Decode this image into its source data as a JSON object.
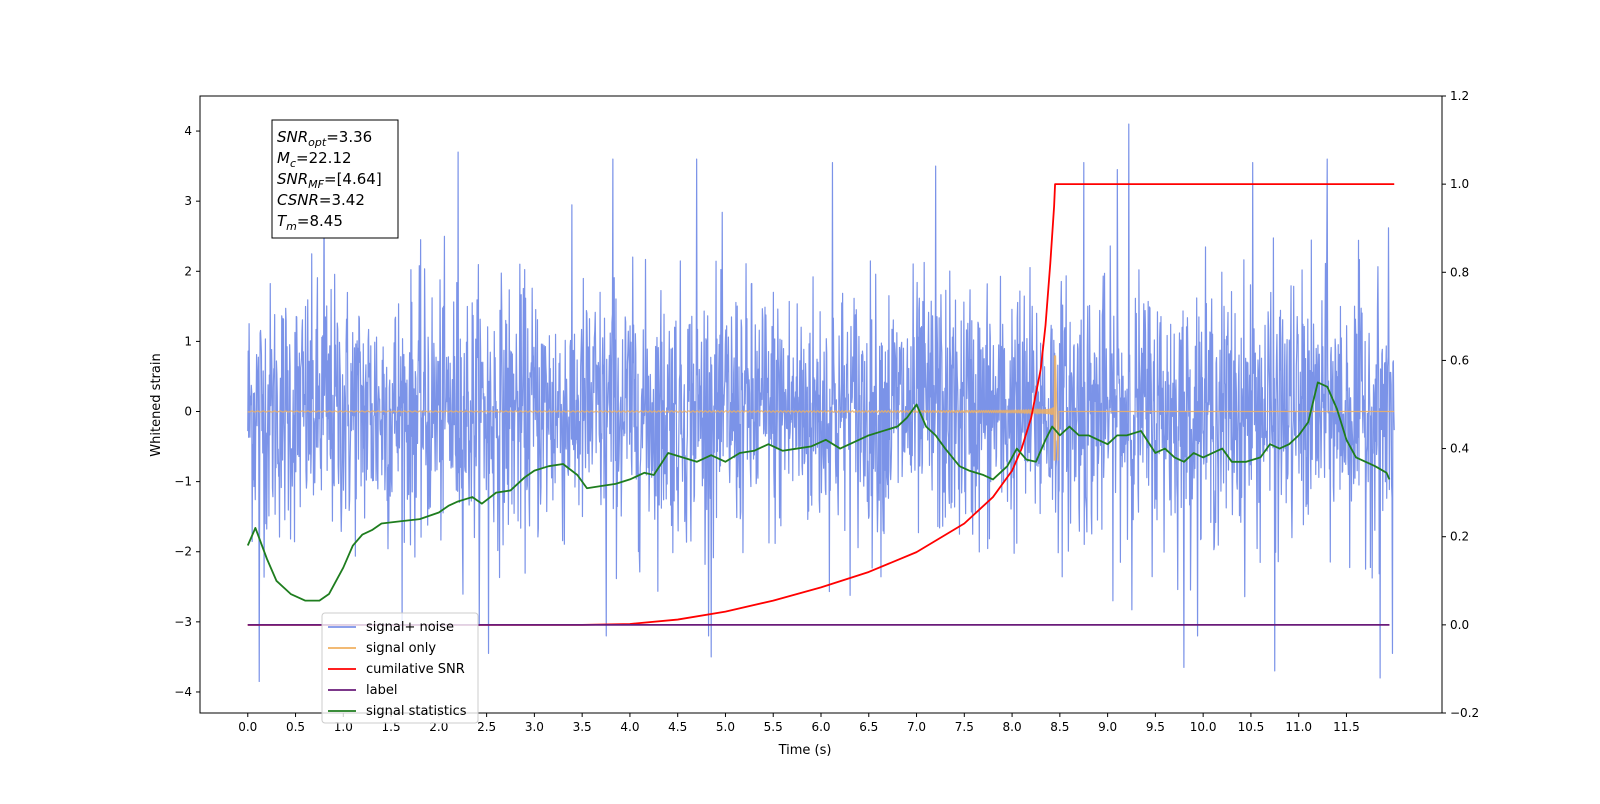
{
  "chart_data": {
    "type": "line",
    "title": "",
    "xlabel": "Time (s)",
    "ylabel": "Whitened strain",
    "xlim": [
      -0.5,
      12.5
    ],
    "ylim": [
      -4.3,
      4.5
    ],
    "y2lim": [
      -0.2,
      1.2
    ],
    "xticks": [
      0.0,
      0.5,
      1.0,
      1.5,
      2.0,
      2.5,
      3.0,
      3.5,
      4.0,
      4.5,
      5.0,
      5.5,
      6.0,
      6.5,
      7.0,
      7.5,
      8.0,
      8.5,
      9.0,
      9.5,
      10.0,
      10.5,
      11.0,
      11.5
    ],
    "xtick_labels": [
      "0.0",
      "0.5",
      "1.0",
      "1.5",
      "2.0",
      "2.5",
      "3.0",
      "3.5",
      "4.0",
      "4.5",
      "5.0",
      "5.5",
      "6.0",
      "6.5",
      "7.0",
      "7.5",
      "8.0",
      "8.5",
      "9.0",
      "9.5",
      "10.0",
      "10.5",
      "11.0",
      "11.5"
    ],
    "yticks": [
      -4,
      -3,
      -2,
      -1,
      0,
      1,
      2,
      3,
      4
    ],
    "ytick_labels": [
      "−4",
      "−3",
      "−2",
      "−1",
      "0",
      "1",
      "2",
      "3",
      "4"
    ],
    "y2ticks": [
      -0.2,
      0.0,
      0.2,
      0.4,
      0.6,
      0.8,
      1.0,
      1.2
    ],
    "y2tick_labels": [
      "−0.2",
      "0.0",
      "0.2",
      "0.4",
      "0.6",
      "0.8",
      "1.0",
      "1.2"
    ],
    "grid": false,
    "legend_position": "lower-left",
    "annotation": {
      "lines": [
        {
          "base": "SNR",
          "sub": "opt",
          "value": "=3.36"
        },
        {
          "base": "M",
          "sub": "c",
          "value": "=22.12"
        },
        {
          "base": "SNR",
          "sub": "MF",
          "value": "=[4.64]"
        },
        {
          "base": "CSNR",
          "sub": "",
          "value": "=3.42"
        },
        {
          "base": "T",
          "sub": "m",
          "value": "=8.45"
        }
      ]
    },
    "series": [
      {
        "name": "signal+ noise",
        "color": "#7b93e8",
        "axis": "left",
        "style": "noise",
        "x_range": [
          0.0,
          12.0
        ],
        "noise_amplitude": 1.2,
        "extremes": [
          {
            "x": 0.12,
            "y": -3.85
          },
          {
            "x": 0.8,
            "y": 3.3
          },
          {
            "x": 2.2,
            "y": 3.7
          },
          {
            "x": 2.52,
            "y": -3.45
          },
          {
            "x": 3.75,
            "y": -3.2
          },
          {
            "x": 3.82,
            "y": 3.6
          },
          {
            "x": 4.7,
            "y": 3.6
          },
          {
            "x": 4.85,
            "y": -3.5
          },
          {
            "x": 6.12,
            "y": 3.55
          },
          {
            "x": 7.2,
            "y": 3.5
          },
          {
            "x": 8.75,
            "y": 3.55
          },
          {
            "x": 9.22,
            "y": 4.1
          },
          {
            "x": 9.1,
            "y": 3.45
          },
          {
            "x": 10.52,
            "y": 3.55
          },
          {
            "x": 10.75,
            "y": -3.7
          },
          {
            "x": 11.3,
            "y": 3.6
          },
          {
            "x": 11.85,
            "y": -3.8
          },
          {
            "x": 11.98,
            "y": -3.45
          },
          {
            "x": 9.8,
            "y": -3.65
          }
        ]
      },
      {
        "name": "signal only",
        "color": "#f0b060",
        "axis": "left",
        "style": "chirp",
        "x_range": [
          0.0,
          8.45
        ],
        "merger_time": 8.45,
        "peak_amplitude": 0.8,
        "min_amplitude": -0.7,
        "ringdown_end": 8.48,
        "flat_until": 12.0
      },
      {
        "name": "cumilative SNR",
        "color": "#ff0000",
        "axis": "right",
        "x": [
          0.0,
          3.5,
          4.0,
          4.5,
          5.0,
          5.5,
          6.0,
          6.5,
          7.0,
          7.5,
          7.8,
          8.0,
          8.1,
          8.2,
          8.3,
          8.35,
          8.4,
          8.44,
          8.45,
          12.0
        ],
        "y": [
          0.0,
          0.0,
          0.002,
          0.012,
          0.03,
          0.055,
          0.085,
          0.12,
          0.165,
          0.23,
          0.29,
          0.35,
          0.4,
          0.47,
          0.58,
          0.68,
          0.82,
          0.95,
          1.0,
          1.0
        ]
      },
      {
        "name": "label",
        "color": "#6a1b7a",
        "axis": "right",
        "x": [
          0.0,
          11.95
        ],
        "y": [
          0.0,
          0.0
        ]
      },
      {
        "name": "signal statistics",
        "color": "#1e7d1e",
        "axis": "right",
        "x": [
          0.0,
          0.08,
          0.2,
          0.3,
          0.45,
          0.6,
          0.75,
          0.85,
          1.0,
          1.1,
          1.2,
          1.3,
          1.4,
          1.6,
          1.8,
          2.0,
          2.1,
          2.2,
          2.35,
          2.45,
          2.6,
          2.75,
          2.9,
          3.0,
          3.15,
          3.3,
          3.45,
          3.55,
          3.7,
          3.85,
          4.0,
          4.15,
          4.25,
          4.4,
          4.55,
          4.7,
          4.85,
          5.0,
          5.15,
          5.3,
          5.45,
          5.6,
          5.75,
          5.9,
          6.05,
          6.2,
          6.35,
          6.5,
          6.65,
          6.8,
          6.9,
          7.0,
          7.1,
          7.2,
          7.3,
          7.45,
          7.55,
          7.7,
          7.8,
          7.95,
          8.05,
          8.15,
          8.25,
          8.35,
          8.42,
          8.5,
          8.6,
          8.7,
          8.8,
          8.9,
          9.0,
          9.1,
          9.2,
          9.35,
          9.5,
          9.6,
          9.7,
          9.8,
          9.9,
          10.0,
          10.1,
          10.2,
          10.3,
          10.45,
          10.6,
          10.7,
          10.8,
          10.9,
          11.0,
          11.1,
          11.2,
          11.3,
          11.4,
          11.5,
          11.6,
          11.7,
          11.8,
          11.92,
          11.95
        ],
        "y": [
          0.18,
          0.22,
          0.15,
          0.1,
          0.07,
          0.055,
          0.055,
          0.07,
          0.13,
          0.18,
          0.205,
          0.215,
          0.23,
          0.235,
          0.24,
          0.255,
          0.27,
          0.28,
          0.29,
          0.275,
          0.3,
          0.305,
          0.335,
          0.35,
          0.36,
          0.365,
          0.34,
          0.31,
          0.315,
          0.32,
          0.33,
          0.345,
          0.34,
          0.39,
          0.38,
          0.37,
          0.385,
          0.37,
          0.39,
          0.395,
          0.41,
          0.395,
          0.4,
          0.405,
          0.42,
          0.4,
          0.415,
          0.43,
          0.44,
          0.45,
          0.47,
          0.5,
          0.45,
          0.43,
          0.4,
          0.36,
          0.35,
          0.34,
          0.33,
          0.36,
          0.4,
          0.375,
          0.37,
          0.42,
          0.45,
          0.43,
          0.45,
          0.43,
          0.43,
          0.42,
          0.41,
          0.43,
          0.43,
          0.44,
          0.39,
          0.4,
          0.38,
          0.37,
          0.39,
          0.38,
          0.39,
          0.4,
          0.37,
          0.37,
          0.38,
          0.41,
          0.4,
          0.41,
          0.43,
          0.46,
          0.55,
          0.54,
          0.49,
          0.42,
          0.38,
          0.37,
          0.36,
          0.345,
          0.33
        ]
      }
    ],
    "legend_entries": [
      {
        "name": "signal+ noise",
        "color": "#7b93e8"
      },
      {
        "name": "signal only",
        "color": "#f0b060"
      },
      {
        "name": "cumilative SNR",
        "color": "#ff0000"
      },
      {
        "name": "label",
        "color": "#6a1b7a"
      },
      {
        "name": "signal statistics",
        "color": "#1e7d1e"
      }
    ]
  }
}
